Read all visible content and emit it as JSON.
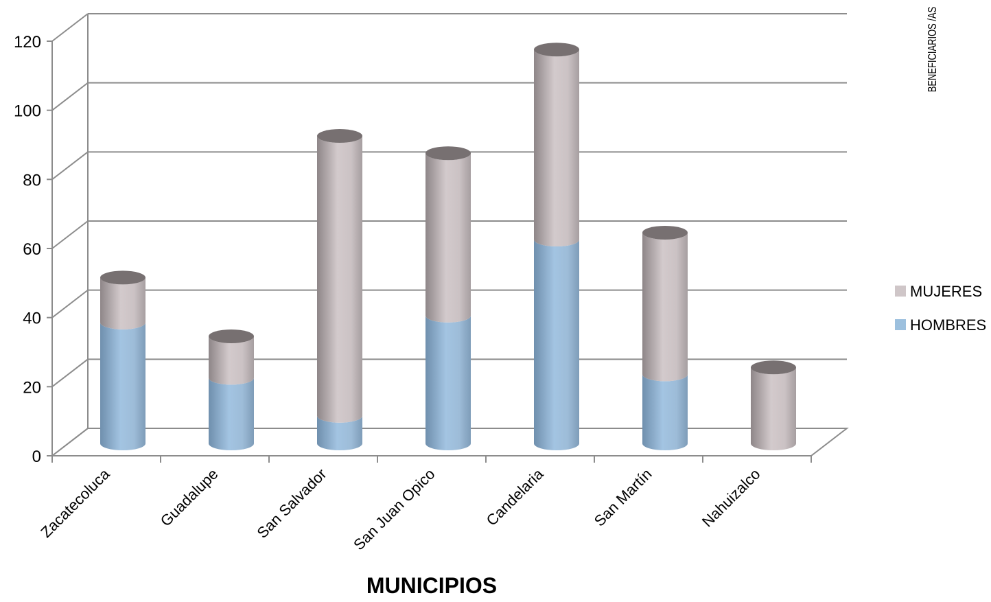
{
  "chart_data": {
    "type": "bar",
    "stacked": true,
    "three_d": true,
    "title": "",
    "xlabel": "MUNICIPIOS",
    "ylabel": "BENEFICIARIOS /AS",
    "categories": [
      "Zacatecoluca",
      "Guadalupe",
      "San Salvador",
      "San Juan Opico",
      "Candelaria",
      "San Martín",
      "Nahuizalco"
    ],
    "series": [
      {
        "name": "HOMBRES",
        "color": "#9cc0de",
        "values": [
          35,
          19,
          8,
          37,
          59,
          20,
          0
        ]
      },
      {
        "name": "MUJERES",
        "color": "#cfc6c8",
        "values": [
          13,
          12,
          81,
          47,
          55,
          41,
          22
        ]
      }
    ],
    "ylim": [
      0,
      120
    ],
    "yticks": [
      "0",
      "20",
      "40",
      "60",
      "80",
      "100",
      "120"
    ],
    "grid": true,
    "legend_position": "right"
  }
}
